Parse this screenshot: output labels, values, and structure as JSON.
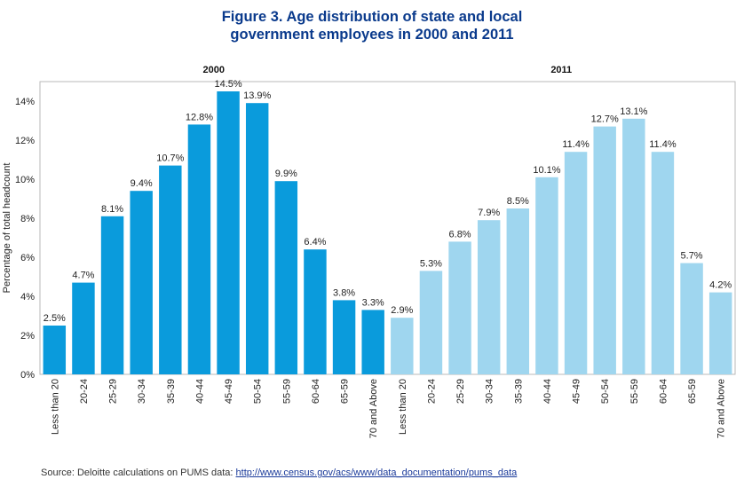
{
  "title_lines": [
    "Figure 3. Age distribution of state and local",
    "government employees in 2000 and 2011"
  ],
  "source": {
    "prefix": "Source:  Deloitte calculations on PUMS data: ",
    "link_text": "http://www.census.gov/acs/www/data_documentation/pums_data"
  },
  "chart_data": {
    "type": "bar",
    "title": "Figure 3. Age distribution of state and local government employees in 2000 and 2011",
    "ylabel": "Percentage of total headcount",
    "ylim": [
      0,
      15
    ],
    "yticks": [
      0,
      2,
      4,
      6,
      8,
      10,
      12,
      14
    ],
    "ytick_labels": [
      "0%",
      "2%",
      "4%",
      "6%",
      "8%",
      "10%",
      "12%",
      "14%"
    ],
    "grid": false,
    "categories": [
      "Less than 20",
      "20-24",
      "25-29",
      "30-34",
      "35-39",
      "40-44",
      "45-49",
      "50-54",
      "55-59",
      "60-64",
      "65-59",
      "70 and Above"
    ],
    "series": [
      {
        "name": "2000",
        "color": "#0a9bdc",
        "values": [
          2.5,
          4.7,
          8.1,
          9.4,
          10.7,
          12.8,
          14.5,
          13.9,
          9.9,
          6.4,
          3.8,
          3.3
        ],
        "labels": [
          "2.5%",
          "4.7%",
          "8.1%",
          "9.4%",
          "10.7%",
          "12.8%",
          "14.5%",
          "13.9%",
          "9.9%",
          "6.4%",
          "3.8%",
          "3.3%"
        ]
      },
      {
        "name": "2011",
        "color": "#9fd6ef",
        "values": [
          2.9,
          5.3,
          6.8,
          7.9,
          8.5,
          10.1,
          11.4,
          12.7,
          13.1,
          11.4,
          5.7,
          4.2
        ],
        "labels": [
          "2.9%",
          "5.3%",
          "6.8%",
          "7.9%",
          "8.5%",
          "10.1%",
          "11.4%",
          "12.7%",
          "13.1%",
          "11.4%",
          "5.7%",
          "4.2%"
        ]
      }
    ]
  }
}
